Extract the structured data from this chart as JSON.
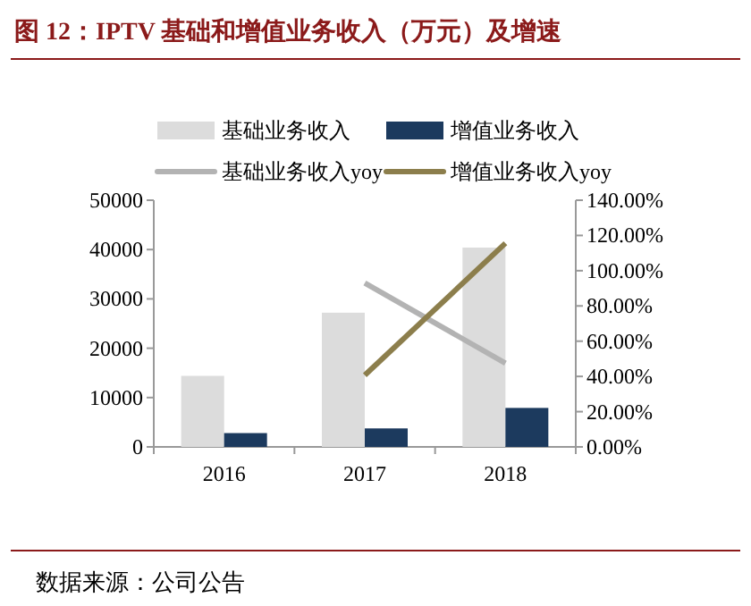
{
  "chart_data": {
    "type": "bar",
    "title": "图 12：IPTV 基础和增值业务收入（万元）及增速",
    "categories": [
      "2016",
      "2017",
      "2018"
    ],
    "series": [
      {
        "name": "基础业务收入",
        "color": "#dcdcdc",
        "values": [
          14400,
          27200,
          40400
        ]
      },
      {
        "name": "增值业务收入",
        "color": "#1c3a5e",
        "values": [
          2800,
          3750,
          7900
        ]
      },
      {
        "name": "基础业务收入yoy",
        "type": "line",
        "axis": "y2",
        "color": "#b3b3b3",
        "values": [
          null,
          93,
          47.5
        ]
      },
      {
        "name": "增值业务收入yoy",
        "type": "line",
        "axis": "y2",
        "color": "#8c7e4c",
        "values": [
          null,
          40.7,
          115.6
        ]
      }
    ],
    "ylim": [
      0,
      50000
    ],
    "yticks": [
      0,
      10000,
      20000,
      30000,
      40000,
      50000
    ],
    "y2lim": [
      0,
      140
    ],
    "y2ticks": [
      {
        "value": 0,
        "label": "0.00%"
      },
      {
        "value": 20,
        "label": "20.00%"
      },
      {
        "value": 40,
        "label": "40.00%"
      },
      {
        "value": 60,
        "label": "60.00%"
      },
      {
        "value": 80,
        "label": "80.00%"
      },
      {
        "value": 100,
        "label": "100.00%"
      },
      {
        "value": 120,
        "label": "120.00%"
      },
      {
        "value": 140,
        "label": "140.00%"
      }
    ],
    "legend": "top",
    "grid": false,
    "annotations": [
      "数据来源：公司公告"
    ]
  }
}
